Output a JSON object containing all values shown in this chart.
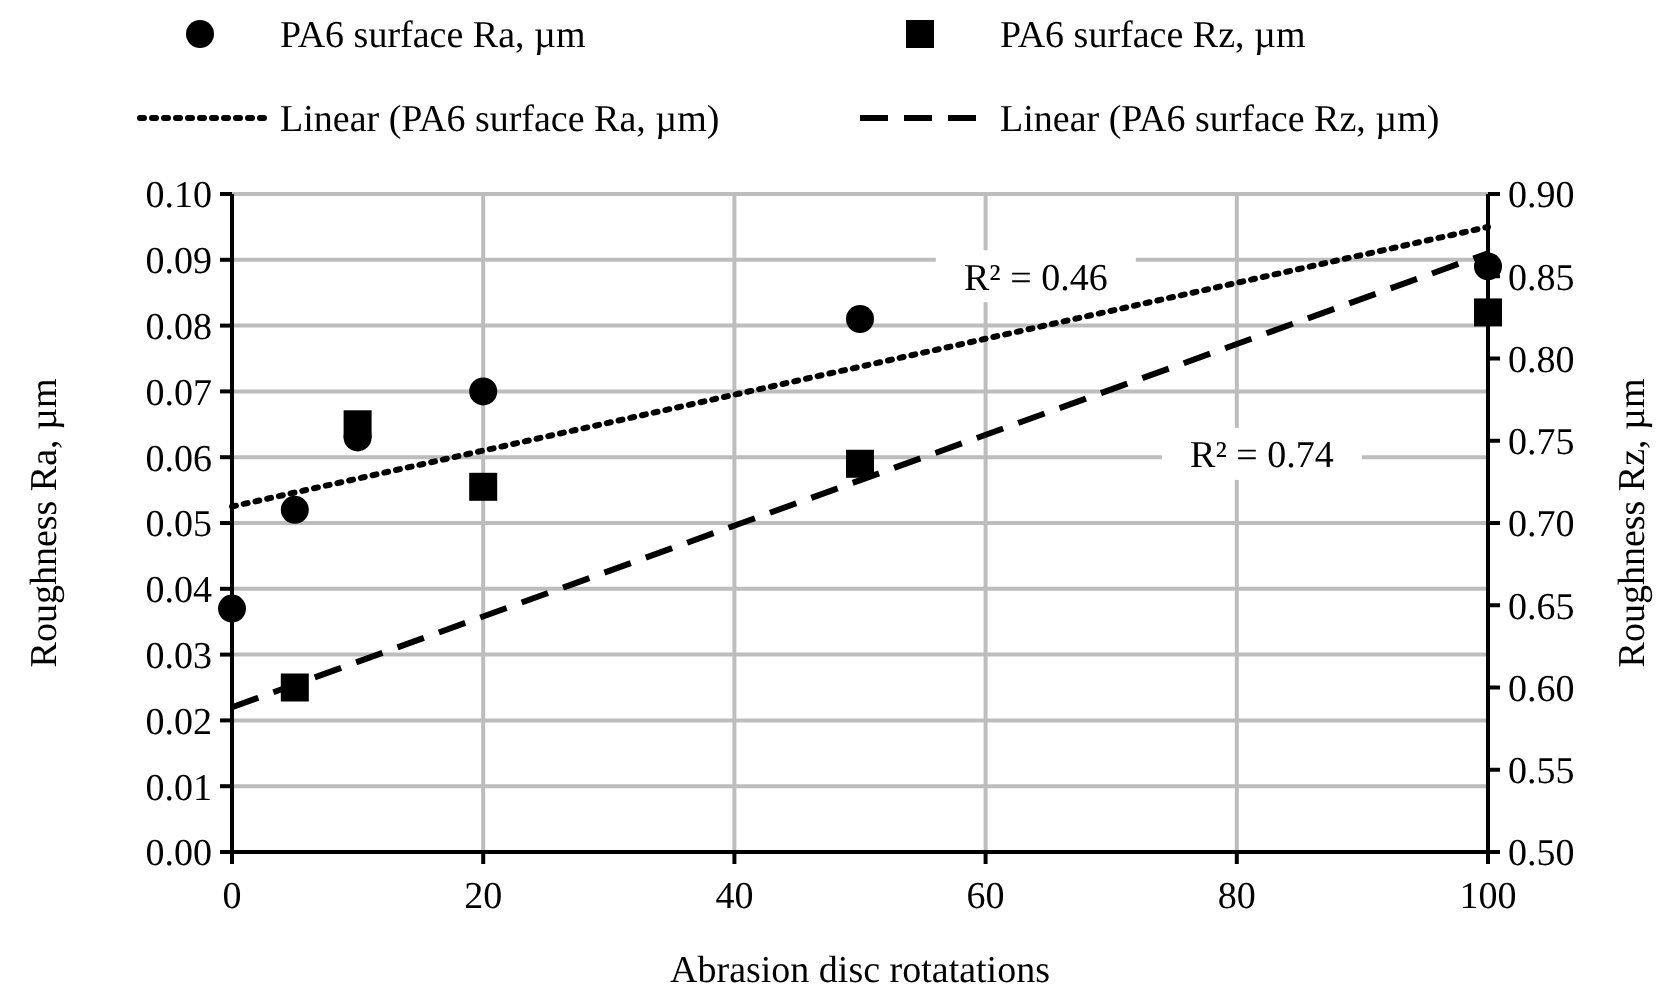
{
  "chart_data": {
    "type": "scatter",
    "xlabel": "Abrasion disc rotatations",
    "ylabel": "Roughness Ra, µm",
    "y2label": "Roughness Rz, µm",
    "xlim": [
      0,
      100
    ],
    "xticks": [
      0,
      20,
      40,
      60,
      80,
      100
    ],
    "ylim": [
      0,
      0.1
    ],
    "yticks": [
      {
        "value": 0,
        "label": "0.00"
      },
      {
        "value": 0.01,
        "label": "0.01"
      },
      {
        "value": 0.02,
        "label": "0.02"
      },
      {
        "value": 0.03,
        "label": "0.03"
      },
      {
        "value": 0.04,
        "label": "0.04"
      },
      {
        "value": 0.05,
        "label": "0.05"
      },
      {
        "value": 0.06,
        "label": "0.06"
      },
      {
        "value": 0.07,
        "label": "0.07"
      },
      {
        "value": 0.08,
        "label": "0.08"
      },
      {
        "value": 0.09,
        "label": "0.09"
      },
      {
        "value": 0.1,
        "label": "0.10"
      }
    ],
    "y2lim": [
      0.5,
      0.9
    ],
    "y2ticks": [
      {
        "value": 0.5,
        "label": "0.50"
      },
      {
        "value": 0.55,
        "label": "0.55"
      },
      {
        "value": 0.6,
        "label": "0.60"
      },
      {
        "value": 0.65,
        "label": "0.65"
      },
      {
        "value": 0.7,
        "label": "0.70"
      },
      {
        "value": 0.75,
        "label": "0.75"
      },
      {
        "value": 0.8,
        "label": "0.80"
      },
      {
        "value": 0.85,
        "label": "0.85"
      },
      {
        "value": 0.9,
        "label": "0.90"
      }
    ],
    "grid": true,
    "legend": "top",
    "series": [
      {
        "name": "PA6 surface Ra, µm",
        "marker": "circle",
        "color": "#000000",
        "x": [
          0,
          5,
          10,
          20,
          50,
          100
        ],
        "values": [
          0.037,
          0.052,
          0.063,
          0.07,
          0.081,
          0.089
        ]
      },
      {
        "name": "PA6 surface Rz, µm",
        "marker": "square",
        "color": "#000000",
        "axis": "y2",
        "x": [
          5,
          10,
          20,
          50,
          100
        ],
        "values": [
          0.6,
          0.76,
          0.722,
          0.736,
          0.828
        ]
      },
      {
        "name": "Linear (PA6 surface Ra, µm)",
        "type": "line",
        "marker": "none",
        "line_style": "dotted",
        "color": "#000000",
        "x": [
          0,
          100
        ],
        "values": [
          0.0525,
          0.095
        ]
      },
      {
        "name": "Linear (PA6 surface Rz, µm)",
        "type": "line",
        "marker": "none",
        "line_style": "dashed",
        "color": "#000000",
        "axis": "y2",
        "x": [
          0,
          100
        ],
        "values": [
          0.588,
          0.864
        ]
      }
    ],
    "annotations": [
      "R² = 0.46",
      "R² = 0.74"
    ]
  }
}
